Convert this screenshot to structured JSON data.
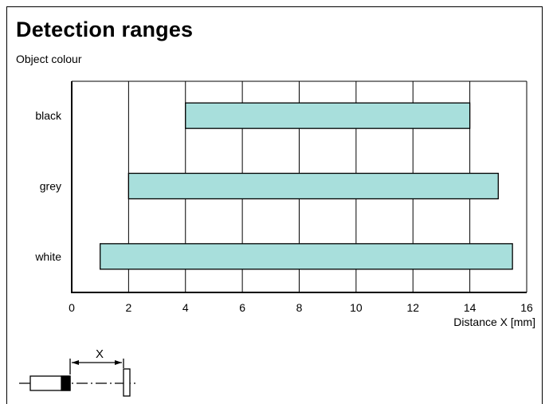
{
  "header": {
    "title": "Detection ranges"
  },
  "chart_data": {
    "type": "bar",
    "orientation": "horizontal",
    "title": "Detection ranges",
    "ylabel": "Object colour",
    "xlabel": "Distance X [mm]",
    "xlim": [
      0,
      16
    ],
    "xticks": [
      0,
      2,
      4,
      6,
      8,
      10,
      12,
      14,
      16
    ],
    "grid": true,
    "colors": {
      "bar_fill": "#a8dfdc",
      "bar_stroke": "#000000"
    },
    "categories": [
      "black",
      "grey",
      "white"
    ],
    "ranges": [
      [
        4,
        14
      ],
      [
        2,
        15
      ],
      [
        1,
        15.5
      ]
    ]
  },
  "diagram": {
    "label": "X"
  }
}
